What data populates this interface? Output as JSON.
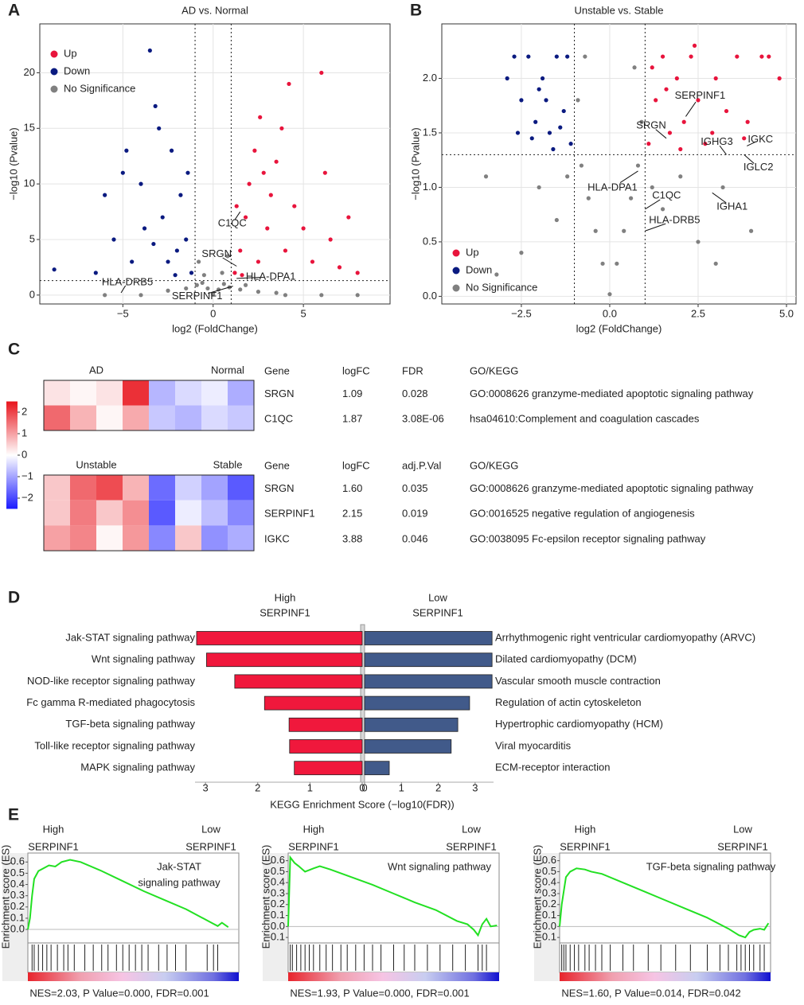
{
  "panel_labels": [
    "A",
    "B",
    "C",
    "D",
    "E"
  ],
  "colorbar": {
    "lim": [
      -2.5,
      2.5
    ],
    "ticks": [
      2,
      1,
      0,
      {
        "value": -1,
        "label": "−1"
      },
      {
        "value": -2,
        "label": "−2"
      }
    ]
  },
  "chart_data": [
    {
      "type": "scatter",
      "title": "AD vs. Normal",
      "xlabel": "log2 (FoldChange)",
      "ylabel": "−log10 (Pvalue)",
      "xlim": [
        -9.6,
        9.8
      ],
      "ylim": [
        -0.8,
        24.4
      ],
      "xticks": [
        {
          "value": -5,
          "label": "−5"
        },
        0,
        5
      ],
      "yticks": [
        0,
        5,
        10,
        15,
        20
      ],
      "grid": true,
      "legend": "upper left",
      "thresholds": {
        "x": [
          -1,
          1
        ],
        "y": 1.3
      },
      "series": [
        {
          "name": "Up",
          "color": "#e8143c",
          "x": [
            1.2,
            1.5,
            1.8,
            2,
            2.3,
            2.6,
            2.5,
            3,
            3.2,
            3.5,
            4,
            4.2,
            4.5,
            5,
            5.5,
            6,
            6.2,
            6.5,
            7,
            7.5,
            8,
            3.8,
            1.3,
            2.8,
            1.6
          ],
          "values": [
            2,
            4,
            7,
            10,
            13,
            16,
            3,
            6,
            9,
            12,
            4,
            19,
            8,
            6,
            3,
            20,
            11,
            5,
            2.5,
            7,
            2,
            15,
            8,
            11,
            1.8
          ]
        },
        {
          "name": "Down",
          "color": "#0a1a80",
          "x": [
            -1.2,
            -1.5,
            -1.8,
            -2,
            -2.3,
            -2.5,
            -2.8,
            -3,
            -3.2,
            -3.5,
            -3.8,
            -4,
            -4.5,
            -5,
            -5.5,
            -6,
            -6.5,
            -4.8,
            -1.4,
            -2.1,
            -8.8,
            -3.3
          ],
          "values": [
            2,
            5,
            9,
            4,
            13,
            3,
            7,
            15,
            17,
            22,
            6,
            10,
            3,
            11,
            5,
            9,
            2,
            13,
            11,
            1.8,
            2.3,
            4.6
          ]
        },
        {
          "name": "No Significance",
          "color": "#808080",
          "x": [
            0,
            0.3,
            -0.3,
            0.6,
            -0.6,
            0.9,
            -0.9,
            1.5,
            -1.5,
            2.5,
            -2.5,
            4,
            -4,
            6,
            -6,
            8,
            0.5,
            -0.5,
            0.8,
            -0.8,
            1.8,
            3.5
          ],
          "values": [
            0.1,
            0.5,
            0.6,
            1,
            1.1,
            0.7,
            0.9,
            0.5,
            0.6,
            0.3,
            0.4,
            0,
            0,
            0,
            0,
            0,
            2,
            1.8,
            3.5,
            3,
            0.9,
            0.2
          ]
        }
      ],
      "annotations": [
        {
          "text": "C1QC",
          "x": 1.5,
          "y": 7.5
        },
        {
          "text": "SRGN",
          "x": 1.3,
          "y": 2.6
        },
        {
          "text": "HLA-DPA1",
          "x": 1.3,
          "y": 1.5
        },
        {
          "text": "HLA-DRB5",
          "x": -5.1,
          "y": 0.2
        },
        {
          "text": "SERPINF1",
          "x": 1.1,
          "y": 0.8
        }
      ]
    },
    {
      "type": "scatter",
      "title": "Unstable vs. Stable",
      "xlabel": "log2 (FoldChange)",
      "ylabel": "−log10 (Pvalue)",
      "xlim": [
        -4.75,
        5.27
      ],
      "ylim": [
        -0.07,
        2.5
      ],
      "xticks": [
        {
          "value": -2.5,
          "label": "−2.5"
        },
        {
          "value": 0,
          "label": "0.0"
        },
        {
          "value": 2.5,
          "label": "2.5"
        },
        {
          "value": 5,
          "label": "5.0"
        }
      ],
      "yticks": [
        {
          "value": 0,
          "label": "0.0"
        },
        {
          "value": 0.5,
          "label": "0.5"
        },
        {
          "value": 1,
          "label": "1.0"
        },
        {
          "value": 1.5,
          "label": "1.5"
        },
        {
          "value": 2,
          "label": "2.0"
        }
      ],
      "grid": true,
      "legend": "lower left",
      "thresholds": {
        "x": [
          -1,
          1
        ],
        "y": 1.3
      },
      "series": [
        {
          "name": "Up",
          "color": "#e8143c",
          "x": [
            1.1,
            1.3,
            1.5,
            1.7,
            1.9,
            2.1,
            2.3,
            2.5,
            2.7,
            3.0,
            3.3,
            3.6,
            3.9,
            4.3,
            4.8,
            1.2,
            2.0,
            3.8,
            4.5,
            2.4,
            1.6,
            2.9
          ],
          "values": [
            1.4,
            1.8,
            2.2,
            1.5,
            2.0,
            1.6,
            2.2,
            1.8,
            1.4,
            2.0,
            1.7,
            2.2,
            1.6,
            2.2,
            2.0,
            2.1,
            1.35,
            1.45,
            2.2,
            2.3,
            1.9,
            1.5
          ]
        },
        {
          "name": "Down",
          "color": "#0a1a80",
          "x": [
            -1.1,
            -1.3,
            -1.5,
            -1.7,
            -1.9,
            -2.1,
            -2.3,
            -2.5,
            -2.7,
            -2.9,
            -1.2,
            -1.6,
            -2.0,
            -2.6,
            -1.4,
            -2.2,
            -1.8
          ],
          "values": [
            1.4,
            1.7,
            2.2,
            1.5,
            2.0,
            1.6,
            2.2,
            1.8,
            2.2,
            2.0,
            2.2,
            1.35,
            1.9,
            1.5,
            1.55,
            1.45,
            1.8
          ]
        },
        {
          "name": "No Significance",
          "color": "#808080",
          "x": [
            0,
            0.2,
            -0.2,
            0.4,
            -0.4,
            0.6,
            -0.6,
            0.8,
            -0.8,
            0.9,
            -0.9,
            0.7,
            -0.7,
            1.5,
            -1.5,
            2,
            -2,
            2.5,
            -2.5,
            3.2,
            -3.5,
            4,
            -3.2,
            3,
            1.2,
            -1.2
          ],
          "values": [
            0.02,
            0.3,
            0.3,
            0.6,
            0.6,
            0.9,
            0.9,
            1.2,
            1.2,
            1.6,
            1.8,
            2.1,
            2.2,
            0.8,
            0.7,
            1.1,
            1.0,
            0.5,
            0.4,
            1.0,
            1.1,
            0.6,
            0.2,
            0.3,
            1.0,
            1.1
          ]
        }
      ],
      "annotations": [
        {
          "text": "SERPINF1",
          "x": 2.15,
          "y": 1.65
        },
        {
          "text": "SRGN",
          "x": 1.6,
          "y": 1.45
        },
        {
          "text": "IGKC",
          "x": 3.88,
          "y": 1.38
        },
        {
          "text": "IGHG3",
          "x": 3.3,
          "y": 1.3
        },
        {
          "text": "IGLC2",
          "x": 3.8,
          "y": 1.3
        },
        {
          "text": "HLA-DPA1",
          "x": 0.8,
          "y": 1.15
        },
        {
          "text": "C1QC",
          "x": 1.0,
          "y": 0.8
        },
        {
          "text": "HLA-DRB5",
          "x": 1.0,
          "y": 0.6
        },
        {
          "text": "IGHA1",
          "x": 2.9,
          "y": 0.95
        }
      ]
    },
    {
      "type": "heatmap",
      "column_groups": [
        "AD",
        "Normal"
      ],
      "values": [
        [
          0.3,
          0.1,
          0.3,
          2.2,
          -0.8,
          -0.4,
          -0.2,
          -0.9
        ],
        [
          1.6,
          0.8,
          0.1,
          0.9,
          -0.6,
          -0.8,
          -0.4,
          -0.6
        ]
      ],
      "table": {
        "header": [
          "Gene",
          "logFC",
          "FDR",
          "GO/KEGG"
        ],
        "rows": [
          [
            "SRGN",
            "1.09",
            "0.028",
            "GO:0008626 granzyme-mediated apoptotic signaling pathway"
          ],
          [
            "C1QC",
            "1.87",
            "3.08E-06",
            "hsa04610:Complement and coagulation cascades"
          ]
        ]
      }
    },
    {
      "type": "heatmap",
      "column_groups": [
        "Unstable",
        "Stable"
      ],
      "values": [
        [
          0.6,
          1.6,
          1.9,
          0.8,
          -1.6,
          -0.5,
          -1.0,
          -1.8
        ],
        [
          0.6,
          1.4,
          0.6,
          1.2,
          -1.8,
          -0.2,
          -0.7,
          -1.3
        ],
        [
          1.0,
          1.3,
          0.1,
          1.1,
          -1.3,
          0.6,
          -1.2,
          -0.9
        ]
      ],
      "table": {
        "header": [
          "Gene",
          "logFC",
          "adj.P.Val",
          "GO/KEGG"
        ],
        "rows": [
          [
            "SRGN",
            "1.60",
            "0.035",
            "GO:0008626 granzyme-mediated apoptotic signaling pathway"
          ],
          [
            "SERPINF1",
            "2.15",
            "0.019",
            "GO:0016525 negative regulation of angiogenesis"
          ],
          [
            "IGKC",
            "3.88",
            "0.046",
            "GO:0038095 Fc-epsilon receptor signaling pathway"
          ]
        ]
      }
    },
    {
      "type": "bar",
      "xlabel": "KEGG Enrichment Score (−log10(FDR))",
      "left": {
        "header": [
          "High",
          "SERPINF1"
        ],
        "color": "#f0183c",
        "xlim": [
          0,
          3.2
        ],
        "xticks": [
          0,
          1,
          2,
          3
        ],
        "categories": [
          "Jak-STAT signaling pathway",
          "Wnt signaling pathway",
          "NOD-like receptor signaling pathway",
          "Fc gamma R-mediated phagocytosis",
          "TGF-beta signaling pathway",
          "Toll-like receptor signaling pathway",
          "MAPK signaling pathway"
        ],
        "values": [
          3.17,
          2.98,
          2.44,
          1.87,
          1.4,
          1.39,
          1.3
        ]
      },
      "right": {
        "header": [
          "Low",
          "SERPINF1"
        ],
        "color": "#415a8a",
        "xlim": [
          0,
          3.5
        ],
        "xticks": [
          0,
          1,
          2,
          3
        ],
        "categories": [
          "Arrhythmogenic right ventricular cardiomyopathy (ARVC)",
          "Dilated cardiomyopathy (DCM)",
          "Vascular smooth muscle contraction",
          "Regulation of actin cytoskeleton",
          "Hypertrophic cardiomyopathy (HCM)",
          "Viral myocarditis",
          "ECM-receptor interaction"
        ],
        "values": [
          3.46,
          3.46,
          3.46,
          2.85,
          2.53,
          2.35,
          0.67
        ]
      }
    },
    {
      "type": "line",
      "header_left": [
        "High",
        "SERPINF1"
      ],
      "header_right": [
        "Low",
        "SERPINF1"
      ],
      "title": [
        "Jak-STAT",
        "signaling pathway"
      ],
      "ylabel": "Enrichment score (ES)",
      "color": "#22e022",
      "xlim": [
        0,
        100
      ],
      "ylim": [
        -0.12,
        0.68
      ],
      "yticks": [
        {
          "value": 0,
          "label": "0.0"
        },
        {
          "value": 0.1,
          "label": "0.1"
        },
        {
          "value": 0.2,
          "label": "0.2"
        },
        {
          "value": 0.3,
          "label": "0.3"
        },
        {
          "value": 0.4,
          "label": "0.4"
        },
        {
          "value": 0.5,
          "label": "0.5"
        },
        {
          "value": 0.6,
          "label": "0.6"
        }
      ],
      "x": [
        0,
        1,
        2,
        3,
        5,
        8,
        10,
        13,
        16,
        20,
        25,
        35,
        45,
        55,
        65,
        75,
        85,
        88,
        90,
        92,
        95
      ],
      "values": [
        0,
        0.1,
        0.3,
        0.45,
        0.52,
        0.55,
        0.57,
        0.56,
        0.6,
        0.62,
        0.6,
        0.52,
        0.43,
        0.34,
        0.26,
        0.18,
        0.08,
        0.05,
        0.03,
        0.06,
        0.02
      ],
      "hits": [
        2,
        3,
        5,
        7,
        9,
        11,
        14,
        17,
        19,
        22,
        27,
        31,
        35,
        38,
        42,
        45,
        48,
        51,
        54,
        57,
        62,
        66,
        70,
        75,
        85,
        88,
        90
      ],
      "footer": "NES=2.03, P Value=0.000, FDR=0.001"
    },
    {
      "type": "line",
      "header_left": [
        "High",
        "SERPINF1"
      ],
      "header_right": [
        "Low",
        "SERPINF1"
      ],
      "title": [
        "Wnt signaling pathway"
      ],
      "ylabel": "Enrichment score (ES)",
      "color": "#22e022",
      "xlim": [
        0,
        100
      ],
      "ylim": [
        -0.15,
        0.67
      ],
      "yticks": [
        {
          "value": -0.1,
          "label": "-0.1"
        },
        {
          "value": 0,
          "label": "0.0"
        },
        {
          "value": 0.1,
          "label": "0.1"
        },
        {
          "value": 0.2,
          "label": "0.2"
        },
        {
          "value": 0.3,
          "label": "0.3"
        },
        {
          "value": 0.4,
          "label": "0.4"
        },
        {
          "value": 0.5,
          "label": "0.5"
        },
        {
          "value": 0.6,
          "label": "0.6"
        }
      ],
      "x": [
        0,
        1,
        3,
        5,
        8,
        12,
        15,
        20,
        30,
        40,
        50,
        60,
        70,
        80,
        85,
        88,
        90,
        92,
        94,
        96,
        99
      ],
      "values": [
        0,
        0.63,
        0.58,
        0.55,
        0.5,
        0.53,
        0.55,
        0.52,
        0.45,
        0.38,
        0.3,
        0.22,
        0.15,
        0.05,
        0.02,
        -0.03,
        -0.08,
        0.02,
        0.07,
        0.0,
        0.01
      ],
      "hits": [
        1,
        2,
        4,
        6,
        8,
        10,
        12,
        15,
        18,
        21,
        25,
        28,
        32,
        36,
        40,
        44,
        50,
        55,
        60,
        66,
        72,
        78,
        84,
        90,
        92,
        94
      ],
      "footer": "NES=1.93, P Value=0.000, FDR=0.001"
    },
    {
      "type": "line",
      "header_left": [
        "High",
        "SERPINF1"
      ],
      "header_right": [
        "Low",
        "SERPINF1"
      ],
      "title": [
        "TGF-beta signaling pathway"
      ],
      "ylabel": "Enrichment score (ES)",
      "color": "#22e022",
      "xlim": [
        0,
        100
      ],
      "ylim": [
        -0.15,
        0.67
      ],
      "yticks": [
        {
          "value": -0.1,
          "label": "-0.1"
        },
        {
          "value": 0,
          "label": "0.0"
        },
        {
          "value": 0.1,
          "label": "0.1"
        },
        {
          "value": 0.2,
          "label": "0.2"
        },
        {
          "value": 0.3,
          "label": "0.3"
        },
        {
          "value": 0.4,
          "label": "0.4"
        },
        {
          "value": 0.5,
          "label": "0.5"
        },
        {
          "value": 0.6,
          "label": "0.6"
        }
      ],
      "x": [
        0,
        1,
        3,
        5,
        8,
        12,
        15,
        20,
        30,
        40,
        50,
        60,
        70,
        80,
        85,
        88,
        90,
        92,
        95,
        97,
        99
      ],
      "values": [
        0,
        0.2,
        0.45,
        0.5,
        0.53,
        0.52,
        0.5,
        0.48,
        0.4,
        0.32,
        0.24,
        0.16,
        0.08,
        -0.02,
        -0.08,
        -0.1,
        -0.05,
        -0.03,
        -0.02,
        -0.03,
        0.03
      ],
      "hits": [
        1,
        2,
        3,
        5,
        7,
        9,
        12,
        14,
        17,
        20,
        24,
        30,
        35,
        42,
        48,
        55,
        62,
        70,
        76,
        80,
        84,
        86,
        88,
        90,
        92,
        95,
        97
      ],
      "footer": "NES=1.60, P Value=0.014, FDR=0.042"
    }
  ]
}
